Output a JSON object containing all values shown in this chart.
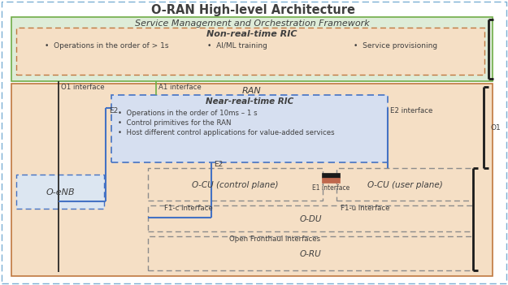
{
  "title": "O-RAN High-level Architecture",
  "smo_label": "Service Management and Orchestration Framework",
  "nonrt_label": "Non-real-time RIC",
  "nonrt_bullets": [
    "Operations in the order of > 1s",
    "AI/ML training",
    "Service provisioning"
  ],
  "ran_label": "RAN",
  "nearrt_label": "Near-real-time RIC",
  "nearrt_bullets": [
    "Operations in the order of 10ms – 1 s",
    "Control primitives for the RAN",
    "Host different control applications for value-added services"
  ],
  "oenb_label": "O-eNB",
  "ocu_cp_label": "O-CU (control plane)",
  "ocu_up_label": "O-CU (user plane)",
  "odu_label": "O-DU",
  "oru_label": "O-RU",
  "label_o1_iface": "O1 interface",
  "label_a1_iface": "A1 interface",
  "label_e2_left": "E2",
  "label_e2_right": "E2 interface",
  "label_e2_bottom": "E2",
  "label_e1": "E1 interface",
  "label_f1c": "F1-c interface",
  "label_f1u": "F1-u interface",
  "label_o1_bracket": "O1",
  "label_open_fronthaul": "Open Fronthaul interfaces",
  "col_white": "#ffffff",
  "col_outer_border": "#7bafd4",
  "col_smo_bg": "#deecd8",
  "col_smo_border": "#70ad47",
  "col_nonrt_bg": "#f5dfc5",
  "col_nonrt_border": "#c07840",
  "col_ran_bg": "#f5dfc5",
  "col_ran_border": "#c07840",
  "col_nearrt_bg": "#d6dff0",
  "col_nearrt_border": "#4472c4",
  "col_oenb_bg": "#dce6f1",
  "col_oenb_border": "#4472c4",
  "col_cu_bg": "#f5dfc5",
  "col_cu_border": "#8c8c8c",
  "col_black": "#1a1a1a",
  "col_e1_black": "#1a1a1a",
  "col_e1_orange": "#c0684d",
  "col_text": "#3f3f3f",
  "col_green_line": "#70ad47",
  "col_blue_line": "#4472c4"
}
